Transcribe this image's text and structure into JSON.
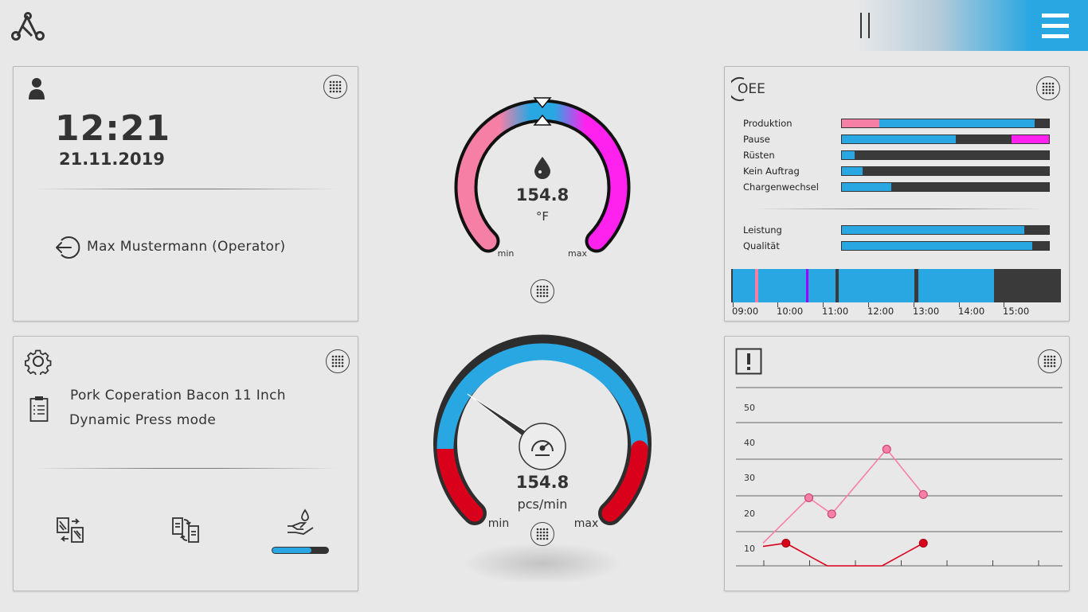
{
  "header": {
    "logo_icon": "logo-triangle-icon",
    "pause_icon": "pause-icon",
    "menu_icon": "hamburger-menu-icon",
    "accent": "#29a7e2"
  },
  "user_panel": {
    "icon": "user-icon",
    "time": "12:21",
    "date": "21.11.2019",
    "logout_icon": "logout-icon",
    "operator": "Max Mustermann (Operator)"
  },
  "product_panel": {
    "icon": "gear-icon",
    "clipboard_icon": "clipboard-list-icon",
    "name": "Pork Coperation Bacon 11 Inch",
    "mode": "Dynamic Press mode",
    "actions": [
      "swap-tool-left-icon",
      "swap-tool-right-icon",
      "hand-oil-icon"
    ],
    "oil_level": 0.7
  },
  "temp_gauge": {
    "icon": "drop-icon",
    "value": "154.8",
    "unit": "°F",
    "min_label": "min",
    "max_label": "max",
    "colors": {
      "low": "#f67fa6",
      "mid": "#29a7e2",
      "high": "#ff22ee"
    }
  },
  "speed_gauge": {
    "icon": "speedometer-icon",
    "value": "154.8",
    "unit": "pcs/min",
    "min_label": "min",
    "max_label": "max",
    "needle_fraction": 0.28,
    "colors": {
      "normal": "#29a7e2",
      "alarm": "#d9001b"
    }
  },
  "oee_panel": {
    "title": "OEE",
    "rows": [
      {
        "label": "Produktion",
        "segments": [
          {
            "from": 0,
            "to": 0.18,
            "color": "#f67fa6"
          },
          {
            "from": 0.18,
            "to": 0.93,
            "color": "#29a7e2"
          }
        ]
      },
      {
        "label": "Pause",
        "segments": [
          {
            "from": 0,
            "to": 0.55,
            "color": "#29a7e2"
          },
          {
            "from": 0.82,
            "to": 1.0,
            "color": "#ff22ee"
          }
        ]
      },
      {
        "label": "Rüsten",
        "segments": [
          {
            "from": 0,
            "to": 0.06,
            "color": "#29a7e2"
          }
        ]
      },
      {
        "label": "Kein Auftrag",
        "segments": [
          {
            "from": 0,
            "to": 0.1,
            "color": "#29a7e2"
          }
        ]
      },
      {
        "label": "Chargenwechsel",
        "segments": [
          {
            "from": 0,
            "to": 0.24,
            "color": "#29a7e2"
          }
        ]
      }
    ],
    "kpis": [
      {
        "label": "Leistung",
        "value": 0.88
      },
      {
        "label": "Qualität",
        "value": 0.92
      }
    ],
    "timeline_labels": [
      "09:00",
      "10:00",
      "11:00",
      "12:00",
      "13:00",
      "14:00",
      "15:00"
    ]
  },
  "alarm_panel": {
    "icon": "alert-icon",
    "chart_data": {
      "type": "line",
      "y_ticks": [
        "10",
        "20",
        "30",
        "40",
        "50"
      ],
      "ylim": [
        0,
        55
      ],
      "grid": true,
      "x_ticks": 7,
      "series": [
        {
          "color": "#f67fa6",
          "x": [
            0,
            1,
            1.5,
            2.7,
            3.5
          ],
          "values": [
            7,
            21,
            16,
            36,
            22
          ]
        },
        {
          "color": "#d9001b",
          "x": [
            0,
            0.5,
            1.4,
            2.6,
            3.5
          ],
          "values": [
            6,
            7,
            0,
            0,
            7
          ]
        }
      ]
    }
  }
}
